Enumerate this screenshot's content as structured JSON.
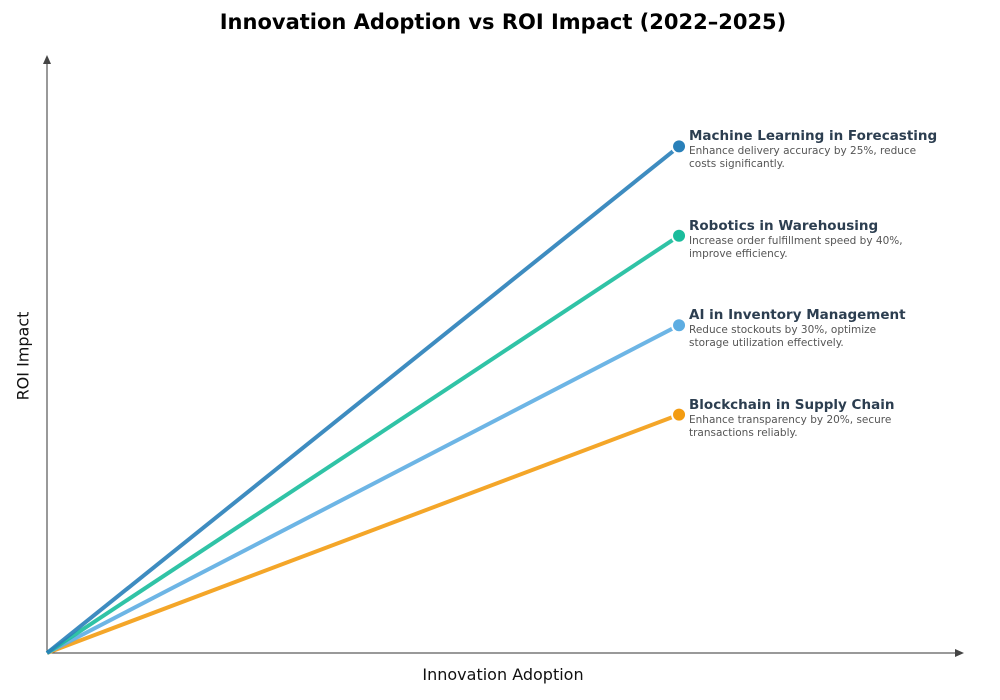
{
  "chart_data": {
    "type": "line",
    "title": "Innovation Adoption vs ROI Impact (2022–2025)",
    "xlabel": "Innovation Adoption",
    "ylabel": "ROI Impact",
    "xlim": [
      0,
      1
    ],
    "ylim": [
      0,
      1
    ],
    "grid": false,
    "ticks": false,
    "series": [
      {
        "name": "Machine Learning in Forecasting",
        "description": "Enhance delivery accuracy by 25%, reduce costs significantly.",
        "color": "#2980b9",
        "x": [
          0,
          0.69
        ],
        "y": [
          0,
          0.85
        ]
      },
      {
        "name": "Robotics in Warehousing",
        "description": "Increase order fulfillment speed by 40%, improve efficiency.",
        "color": "#1abc9c",
        "x": [
          0,
          0.69
        ],
        "y": [
          0,
          0.7
        ]
      },
      {
        "name": "AI in Inventory Management",
        "description": "Reduce stockouts by 30%, optimize storage utilization effectively.",
        "color": "#5dade2",
        "x": [
          0,
          0.69
        ],
        "y": [
          0,
          0.55
        ]
      },
      {
        "name": "Blockchain in Supply Chain",
        "description": "Enhance transparency by 20%, secure transactions reliably.",
        "color": "#f39c12",
        "x": [
          0,
          0.69
        ],
        "y": [
          0,
          0.4
        ]
      }
    ]
  }
}
